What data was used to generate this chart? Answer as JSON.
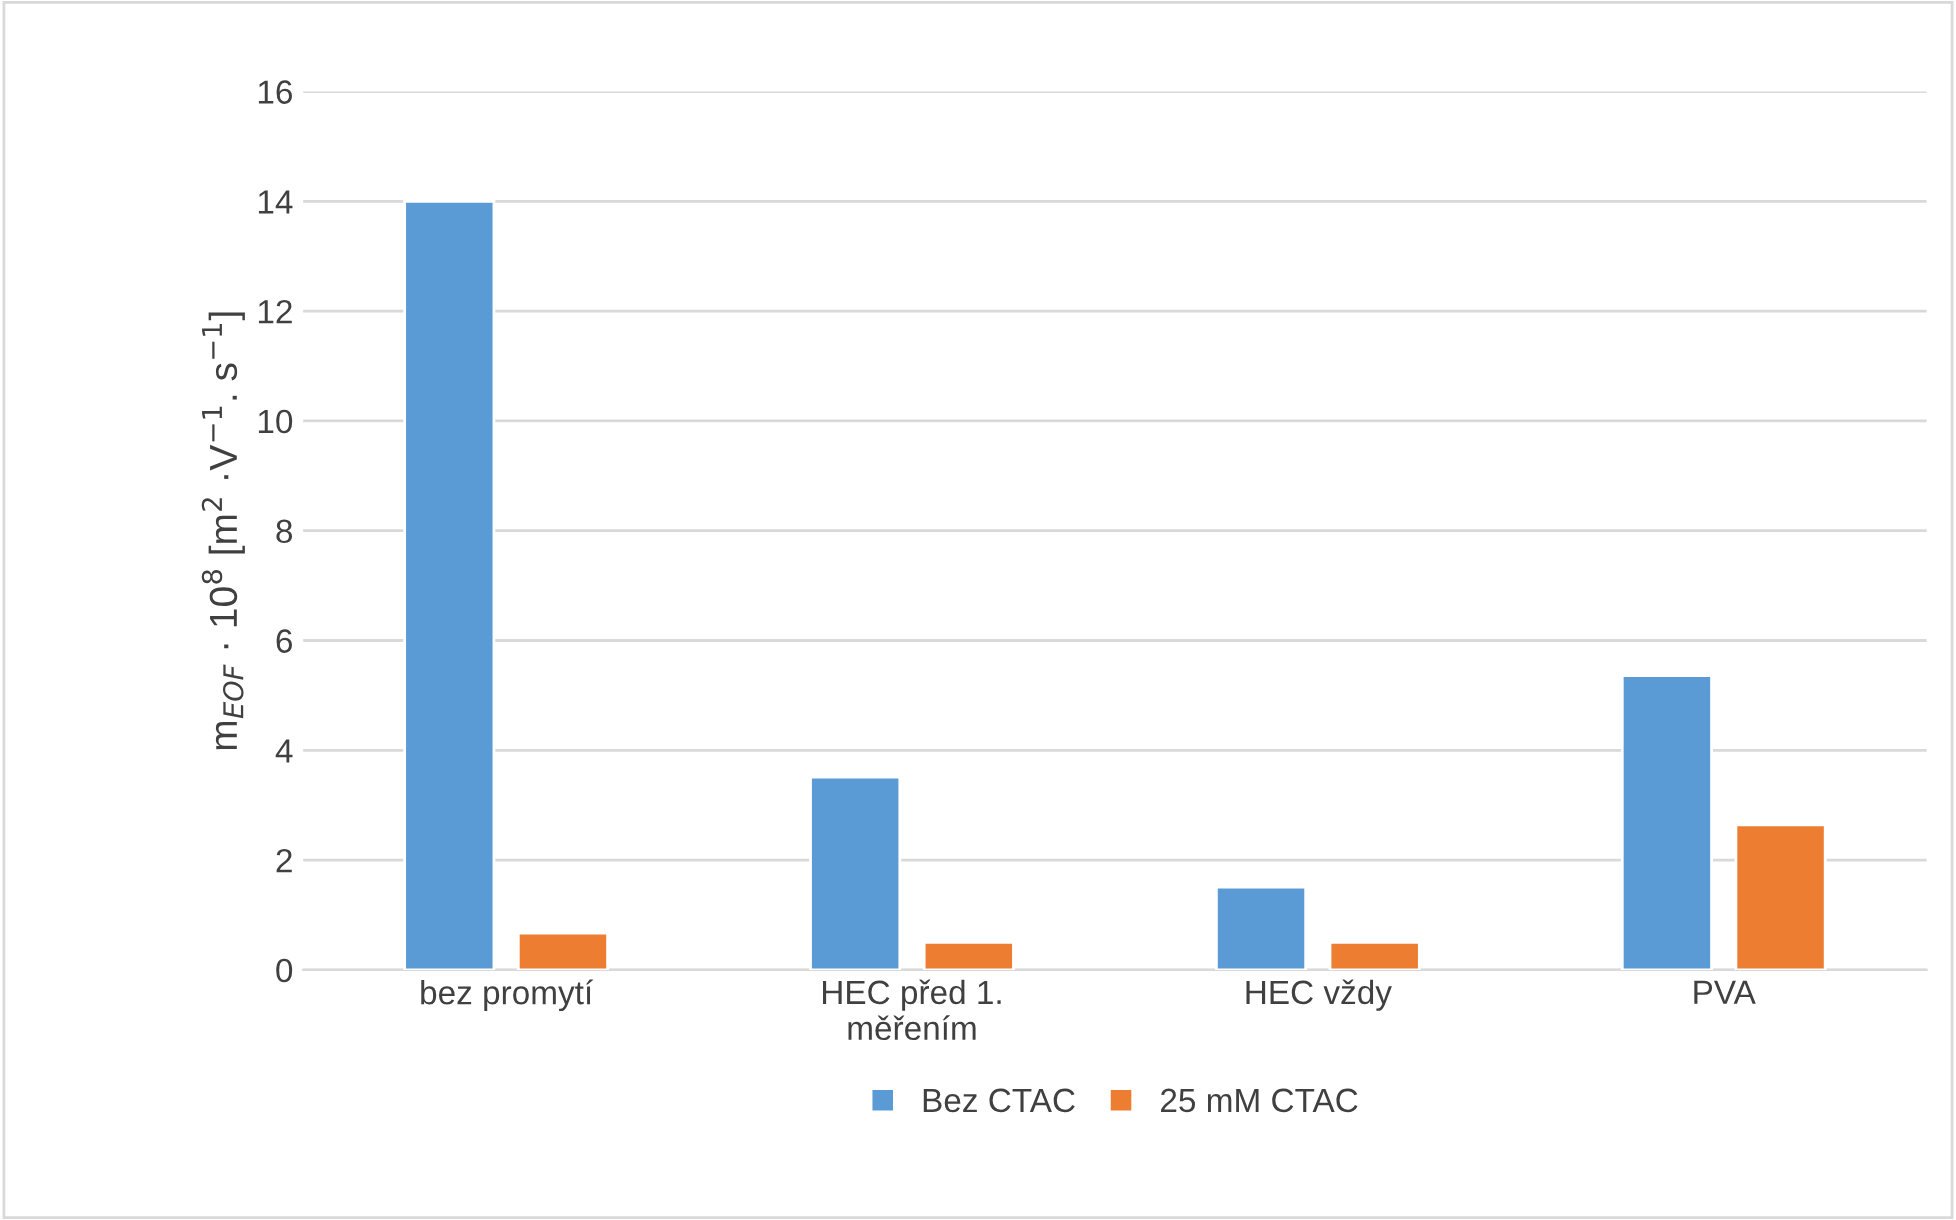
{
  "chart_data": {
    "type": "bar",
    "ylabel": "m$_{EOF}$ · 10$^{8}$ [m$^{2}$ ·V$^{−1}$. s$^{−1}$]",
    "categories": [
      "bez promytí",
      "HEC před 1.\nměřením",
      "HEC vždy",
      "PVA"
    ],
    "series": [
      {
        "name": "Bez CTAC",
        "color": "#5b9bd5",
        "values": [
          14.0,
          3.51,
          1.51,
          5.36
        ]
      },
      {
        "name": "25 mM CTAC",
        "color": "#ed7d31",
        "values": [
          0.67,
          0.5,
          0.5,
          2.64
        ]
      }
    ],
    "ylim": [
      0,
      16
    ],
    "yticks": [
      0,
      2,
      4,
      6,
      8,
      10,
      12,
      14,
      16
    ],
    "grid": "y",
    "legend": "bottom"
  }
}
